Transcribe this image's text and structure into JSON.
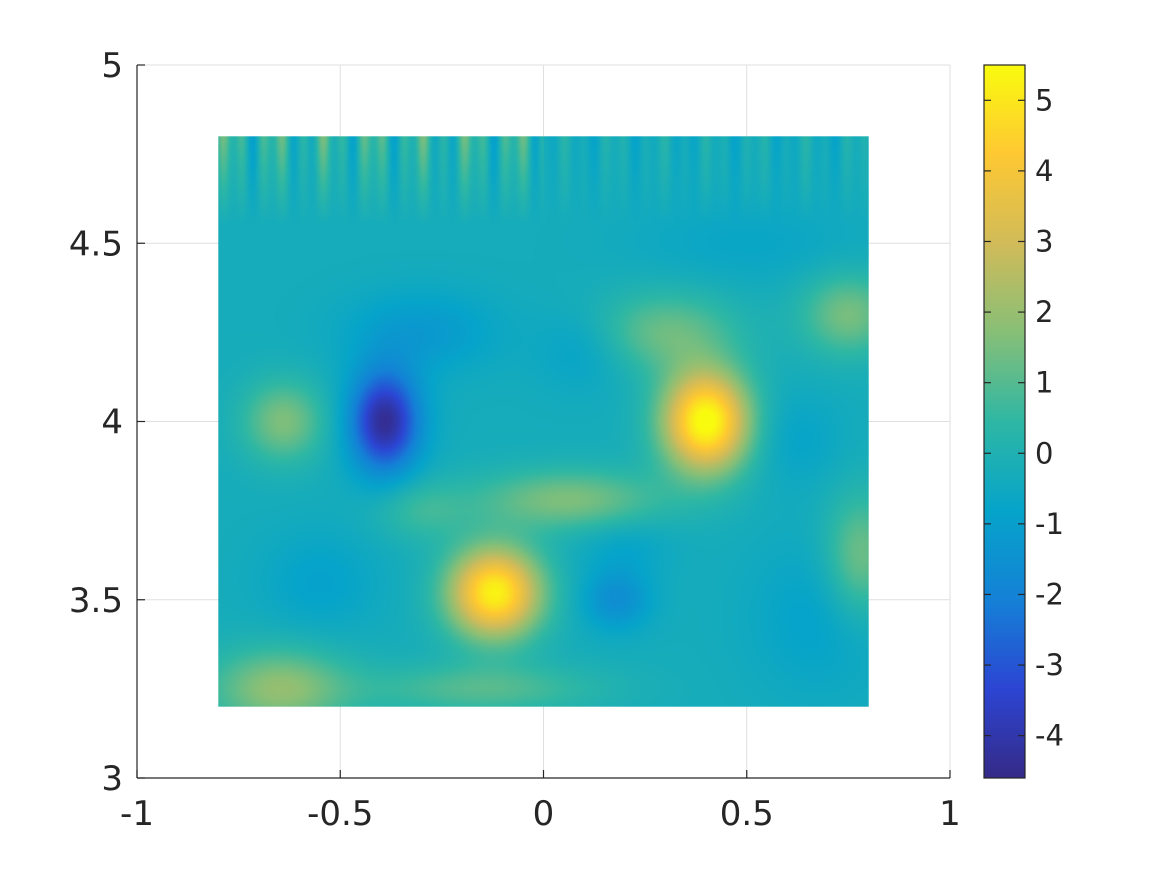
{
  "chart_data": {
    "type": "heatmap",
    "title": "",
    "xlabel": "",
    "ylabel": "",
    "xlim": [
      -1,
      1
    ],
    "ylim": [
      3,
      5
    ],
    "grid": true,
    "x_ticks": [
      -1,
      -0.5,
      0,
      0.5,
      1
    ],
    "x_tick_labels": [
      "-1",
      "-0.5",
      "0",
      "0.5",
      "1"
    ],
    "y_ticks": [
      3,
      3.5,
      4,
      4.5,
      5
    ],
    "y_tick_labels": [
      "3",
      "3.5",
      "4",
      "4.5",
      "5"
    ],
    "data_extent": {
      "x": [
        -0.8,
        0.8
      ],
      "y": [
        3.2,
        4.8
      ]
    },
    "colormap": "parula",
    "colormap_stops": [
      "#352a87",
      "#2c45d3",
      "#1481d6",
      "#06a4ca",
      "#2eb7a4",
      "#87bf77",
      "#d1bb59",
      "#fec832",
      "#f9fb0e"
    ],
    "colorbar": {
      "position": "right",
      "limits": [
        -4.6,
        5.5
      ],
      "ticks": [
        -4,
        -3,
        -2,
        -1,
        0,
        1,
        2,
        3,
        4,
        5
      ],
      "tick_labels": [
        "-4",
        "-3",
        "-2",
        "-1",
        "0",
        "1",
        "2",
        "3",
        "4",
        "5"
      ]
    },
    "background_value": -0.3,
    "features": [
      {
        "x": 0.4,
        "y": 4.0,
        "sx": 0.075,
        "sy": 0.1,
        "value": 5.7
      },
      {
        "x": -0.12,
        "y": 3.52,
        "sx": 0.08,
        "sy": 0.09,
        "value": 5.3
      },
      {
        "x": -0.39,
        "y": 4.0,
        "sx": 0.06,
        "sy": 0.1,
        "value": -4.4
      },
      {
        "x": -0.3,
        "y": 4.25,
        "sx": 0.13,
        "sy": 0.08,
        "value": -1.2
      },
      {
        "x": 0.18,
        "y": 3.5,
        "sx": 0.06,
        "sy": 0.06,
        "value": -1.6
      },
      {
        "x": 0.2,
        "y": 3.65,
        "sx": 0.08,
        "sy": 0.06,
        "value": -0.8
      },
      {
        "x": 0.1,
        "y": 4.2,
        "sx": 0.08,
        "sy": 0.08,
        "value": -0.9
      },
      {
        "x": 0.5,
        "y": 4.5,
        "sx": 0.2,
        "sy": 0.08,
        "value": -0.7
      },
      {
        "x": 0.68,
        "y": 3.45,
        "sx": 0.12,
        "sy": 0.15,
        "value": -0.9
      },
      {
        "x": 0.62,
        "y": 3.95,
        "sx": 0.08,
        "sy": 0.09,
        "value": -0.8
      },
      {
        "x": -0.64,
        "y": 4.0,
        "sx": 0.07,
        "sy": 0.08,
        "value": 1.6
      },
      {
        "x": 0.06,
        "y": 3.78,
        "sx": 0.16,
        "sy": 0.06,
        "value": 1.6
      },
      {
        "x": 0.3,
        "y": 4.25,
        "sx": 0.12,
        "sy": 0.08,
        "value": 1.3
      },
      {
        "x": 0.75,
        "y": 4.3,
        "sx": 0.08,
        "sy": 0.08,
        "value": 1.5
      },
      {
        "x": -0.65,
        "y": 3.25,
        "sx": 0.12,
        "sy": 0.08,
        "value": 1.9
      },
      {
        "x": 0.78,
        "y": 3.62,
        "sx": 0.06,
        "sy": 0.12,
        "value": 1.5
      },
      {
        "x": -0.15,
        "y": 3.25,
        "sx": 0.2,
        "sy": 0.05,
        "value": 1.0
      },
      {
        "x": -0.55,
        "y": 3.55,
        "sx": 0.1,
        "sy": 0.1,
        "value": -0.9
      },
      {
        "x": -0.3,
        "y": 3.75,
        "sx": 0.08,
        "sy": 0.06,
        "value": 0.6
      }
    ]
  }
}
